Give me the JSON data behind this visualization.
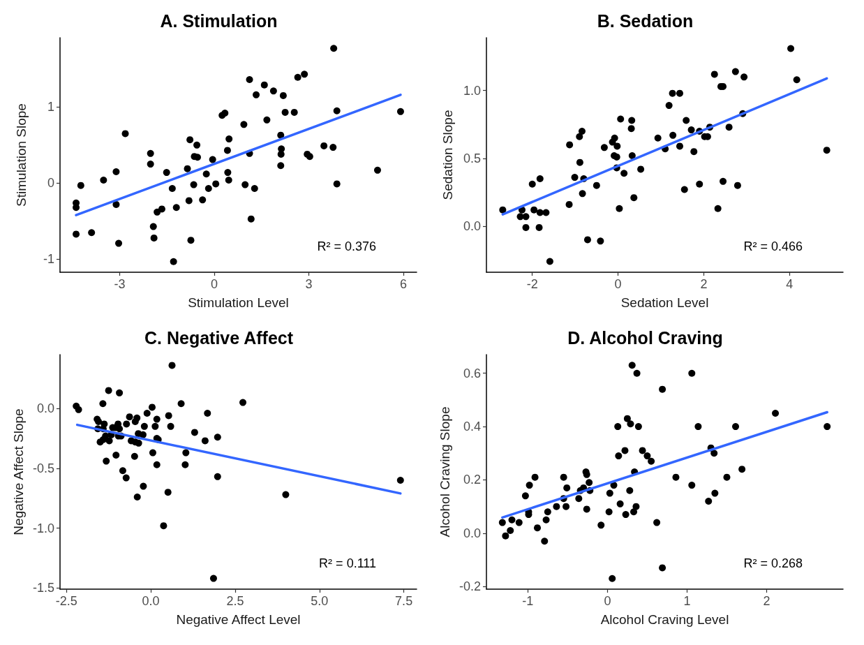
{
  "chart_data": [
    {
      "type": "scatter",
      "title": "A. Stimulation",
      "xlabel": "Stimulation Level",
      "ylabel": "Stimulation Slope",
      "xlim": [
        -4.89,
        6.42
      ],
      "ylim": [
        -1.17,
        1.91
      ],
      "xticks": [
        -3,
        0,
        3,
        6
      ],
      "yticks": [
        -1,
        0,
        1
      ],
      "annotations": [
        "R² = 0.376"
      ],
      "series": [
        {
          "marker": "circle",
          "color": "#000000",
          "x": [
            -4.38,
            -4.38,
            -4.23,
            -4.38,
            -3.89,
            -3.51,
            -3.11,
            -3.11,
            -3.03,
            -2.82,
            -2.02,
            -2.02,
            -1.93,
            -1.91,
            -1.81,
            -1.66,
            -1.51,
            -1.33,
            -1.29,
            -1.2,
            -0.85,
            -0.8,
            -0.77,
            -0.74,
            -0.65,
            -0.63,
            -0.55,
            -0.53,
            -0.37,
            -0.25,
            -0.18,
            -0.05,
            0.05,
            0.25,
            0.34,
            0.42,
            0.43,
            0.46,
            0.47,
            0.94,
            0.98,
            1.12,
            1.12,
            1.17,
            1.28,
            1.33,
            1.59,
            1.67,
            1.88,
            2.11,
            2.13,
            2.12,
            2.11,
            2.19,
            2.25,
            2.54,
            2.65,
            2.86,
            2.95,
            3.03,
            3.48,
            3.77,
            3.79,
            3.89,
            3.89,
            5.18,
            5.91
          ],
          "values": [
            -0.26,
            -0.32,
            -0.03,
            -0.67,
            -0.65,
            0.04,
            0.15,
            -0.28,
            -0.79,
            0.65,
            0.39,
            0.25,
            -0.57,
            -0.72,
            -0.38,
            -0.34,
            0.14,
            -0.07,
            -1.03,
            -0.32,
            0.19,
            -0.23,
            0.57,
            -0.75,
            -0.02,
            0.35,
            0.5,
            0.34,
            -0.22,
            0.12,
            -0.07,
            0.31,
            -0.01,
            0.89,
            0.92,
            0.43,
            0.14,
            0.04,
            0.58,
            0.77,
            -0.02,
            1.36,
            0.39,
            -0.47,
            -0.07,
            1.16,
            1.29,
            0.83,
            1.21,
            0.63,
            0.45,
            0.38,
            0.23,
            1.15,
            0.93,
            0.93,
            1.39,
            1.43,
            0.38,
            0.35,
            0.49,
            0.47,
            1.77,
            0.95,
            -0.01,
            0.17,
            0.94
          ]
        },
        {
          "type": "line",
          "marker": "none",
          "color": "#3366ff",
          "x": [
            -4.38,
            5.91
          ],
          "values": [
            -0.42,
            1.16
          ]
        }
      ]
    },
    {
      "type": "scatter",
      "title": "B. Sedation",
      "xlabel": "Sedation Level",
      "ylabel": "Sedation Slope",
      "xlim": [
        -3.07,
        5.25
      ],
      "ylim": [
        -0.34,
        1.39
      ],
      "xticks": [
        -2,
        0,
        2,
        4
      ],
      "yticks": [
        {
          "value": 0,
          "label": "0.0"
        },
        {
          "value": 0.5,
          "label": "0.5"
        },
        {
          "value": 1,
          "label": "1.0"
        }
      ],
      "annotations": [
        "R² = 0.466"
      ],
      "series": [
        {
          "marker": "circle",
          "color": "#000000",
          "x": [
            -2.69,
            -2.24,
            -2.28,
            -2.15,
            -2.15,
            -2.0,
            -1.96,
            -1.84,
            -1.82,
            -1.82,
            -1.68,
            -1.59,
            -1.14,
            -1.13,
            -1.01,
            -0.9,
            -0.89,
            -0.84,
            -0.83,
            -0.8,
            -0.71,
            -0.5,
            -0.41,
            -0.32,
            -0.13,
            -0.08,
            -0.02,
            -0.09,
            -0.03,
            -0.03,
            0.03,
            0.06,
            0.14,
            0.31,
            0.32,
            0.33,
            0.37,
            0.53,
            0.93,
            1.1,
            1.19,
            1.27,
            1.28,
            1.44,
            1.44,
            1.55,
            1.59,
            1.71,
            1.77,
            1.9,
            1.9,
            2.02,
            2.09,
            2.14,
            2.25,
            2.33,
            2.4,
            2.45,
            2.45,
            2.59,
            2.74,
            2.79,
            2.91,
            2.94,
            4.03,
            4.17,
            4.87
          ],
          "values": [
            0.12,
            0.12,
            0.07,
            0.07,
            -0.01,
            0.31,
            0.12,
            -0.01,
            0.35,
            0.1,
            0.1,
            -0.26,
            0.16,
            0.6,
            0.36,
            0.66,
            0.47,
            0.7,
            0.24,
            0.35,
            -0.1,
            0.3,
            -0.11,
            0.58,
            0.62,
            0.65,
            0.59,
            0.52,
            0.51,
            0.43,
            0.13,
            0.79,
            0.39,
            0.72,
            0.78,
            0.52,
            0.21,
            0.42,
            0.65,
            0.57,
            0.89,
            0.98,
            0.67,
            0.98,
            0.59,
            0.27,
            0.78,
            0.71,
            0.55,
            0.7,
            0.31,
            0.66,
            0.66,
            0.73,
            1.12,
            0.13,
            1.03,
            1.03,
            0.33,
            0.73,
            1.14,
            0.3,
            0.83,
            1.1,
            1.31,
            1.08,
            0.56
          ]
        },
        {
          "type": "line",
          "marker": "none",
          "color": "#3366ff",
          "x": [
            -2.69,
            4.87
          ],
          "values": [
            0.087,
            1.09
          ]
        }
      ]
    },
    {
      "type": "scatter",
      "title": "C. Negative Affect",
      "xlabel": "Negative Affect Level",
      "ylabel": "Negative Affect Slope",
      "xlim": [
        -2.69,
        7.88
      ],
      "ylim": [
        -1.51,
        0.45
      ],
      "xticks": [
        {
          "value": -2.5,
          "label": "-2.5"
        },
        {
          "value": 0,
          "label": "0.0"
        },
        {
          "value": 2.5,
          "label": "2.5"
        },
        {
          "value": 5,
          "label": "5.0"
        },
        {
          "value": 7.5,
          "label": "7.5"
        }
      ],
      "yticks": [
        {
          "value": -1.5,
          "label": "-1.5"
        },
        {
          "value": -1,
          "label": "-1.0"
        },
        {
          "value": -0.5,
          "label": "-0.5"
        },
        {
          "value": 0,
          "label": "0.0"
        }
      ],
      "annotations": [
        "R² = 0.111"
      ],
      "series": [
        {
          "marker": "circle",
          "color": "#000000",
          "x": [
            -2.21,
            -2.14,
            -1.59,
            -1.55,
            -1.57,
            -1.42,
            -1.38,
            -1.41,
            -1.5,
            -1.41,
            -1.34,
            -1.32,
            -1.25,
            -1.23,
            -1.17,
            -1.13,
            -1.05,
            -1.03,
            -0.97,
            -0.96,
            -0.93,
            -0.93,
            -0.88,
            -0.83,
            -0.73,
            -0.72,
            -0.63,
            -0.58,
            -0.48,
            -0.46,
            -0.46,
            -0.41,
            -0.4,
            -0.37,
            -0.36,
            -0.23,
            -0.22,
            -0.19,
            -0.11,
            0.04,
            0.06,
            0.13,
            0.18,
            0.18,
            0.18,
            0.22,
            0.38,
            0.51,
            0.53,
            0.59,
            0.63,
            0.9,
            1.02,
            1.04,
            1.3,
            1.61,
            1.68,
            1.86,
            1.98,
            1.98,
            2.73,
            4.0,
            7.4
          ],
          "values": [
            0.02,
            -0.01,
            -0.09,
            -0.11,
            -0.17,
            0.04,
            -0.13,
            -0.17,
            -0.28,
            -0.26,
            -0.23,
            -0.44,
            0.15,
            -0.27,
            -0.22,
            -0.16,
            -0.16,
            -0.39,
            -0.13,
            -0.23,
            -0.17,
            0.13,
            -0.23,
            -0.52,
            -0.58,
            -0.13,
            -0.07,
            -0.27,
            -0.4,
            -0.11,
            -0.28,
            -0.08,
            -0.74,
            -0.21,
            -0.29,
            -0.22,
            -0.65,
            -0.15,
            -0.04,
            0.01,
            -0.37,
            -0.15,
            -0.09,
            -0.25,
            -0.47,
            -0.26,
            -0.98,
            -0.7,
            -0.06,
            -0.15,
            0.36,
            0.04,
            -0.47,
            -0.37,
            -0.2,
            -0.27,
            -0.04,
            -1.42,
            -0.24,
            -0.57,
            0.05,
            -0.72,
            -0.6
          ]
        },
        {
          "type": "line",
          "marker": "none",
          "color": "#3366ff",
          "x": [
            -2.18,
            7.4
          ],
          "values": [
            -0.137,
            -0.71
          ]
        }
      ]
    },
    {
      "type": "scatter",
      "title": "D. Alcohol Craving",
      "xlabel": "Alcohol Craving Level",
      "ylabel": "Alcohol Craving Slope",
      "xlim": [
        -1.52,
        2.96
      ],
      "ylim": [
        -0.21,
        0.67
      ],
      "xticks": [
        -1,
        0,
        1,
        2
      ],
      "yticks": [
        {
          "value": -0.2,
          "label": "-0.2"
        },
        {
          "value": 0,
          "label": "0.0"
        },
        {
          "value": 0.2,
          "label": "0.2"
        },
        {
          "value": 0.4,
          "label": "0.4"
        },
        {
          "value": 0.6,
          "label": "0.6"
        }
      ],
      "annotations": [
        "R² = 0.268"
      ],
      "series": [
        {
          "marker": "circle",
          "color": "#000000",
          "x": [
            -1.32,
            -1.28,
            -1.22,
            -1.2,
            -1.11,
            -1.03,
            -0.99,
            -0.99,
            -0.98,
            -0.91,
            -0.88,
            -0.79,
            -0.77,
            -0.75,
            -0.64,
            -0.55,
            -0.55,
            -0.52,
            -0.51,
            -0.36,
            -0.34,
            -0.3,
            -0.27,
            -0.26,
            -0.26,
            -0.23,
            -0.22,
            -0.08,
            0.02,
            0.03,
            0.06,
            0.08,
            0.13,
            0.14,
            0.16,
            0.22,
            0.23,
            0.25,
            0.28,
            0.29,
            0.31,
            0.33,
            0.34,
            0.36,
            0.37,
            0.39,
            0.44,
            0.5,
            0.55,
            0.62,
            0.69,
            0.69,
            0.86,
            1.06,
            1.06,
            1.14,
            1.27,
            1.3,
            1.34,
            1.35,
            1.5,
            1.61,
            1.69,
            2.11,
            2.76
          ],
          "values": [
            0.04,
            -0.01,
            0.01,
            0.05,
            0.04,
            0.14,
            0.07,
            0.08,
            0.18,
            0.21,
            0.02,
            -0.03,
            0.05,
            0.08,
            0.1,
            0.21,
            0.13,
            0.1,
            0.17,
            0.13,
            0.16,
            0.17,
            0.23,
            0.22,
            0.09,
            0.19,
            0.16,
            0.03,
            0.08,
            0.15,
            -0.17,
            0.18,
            0.4,
            0.29,
            0.11,
            0.31,
            0.07,
            0.43,
            0.16,
            0.41,
            0.63,
            0.08,
            0.23,
            0.1,
            0.6,
            0.4,
            0.31,
            0.29,
            0.27,
            0.04,
            -0.13,
            0.54,
            0.21,
            0.18,
            0.6,
            0.4,
            0.12,
            0.32,
            0.3,
            0.15,
            0.21,
            0.4,
            0.24,
            0.45,
            0.4
          ]
        },
        {
          "type": "line",
          "marker": "none",
          "color": "#3366ff",
          "x": [
            -1.32,
            2.76
          ],
          "values": [
            0.059,
            0.454
          ]
        }
      ]
    }
  ]
}
